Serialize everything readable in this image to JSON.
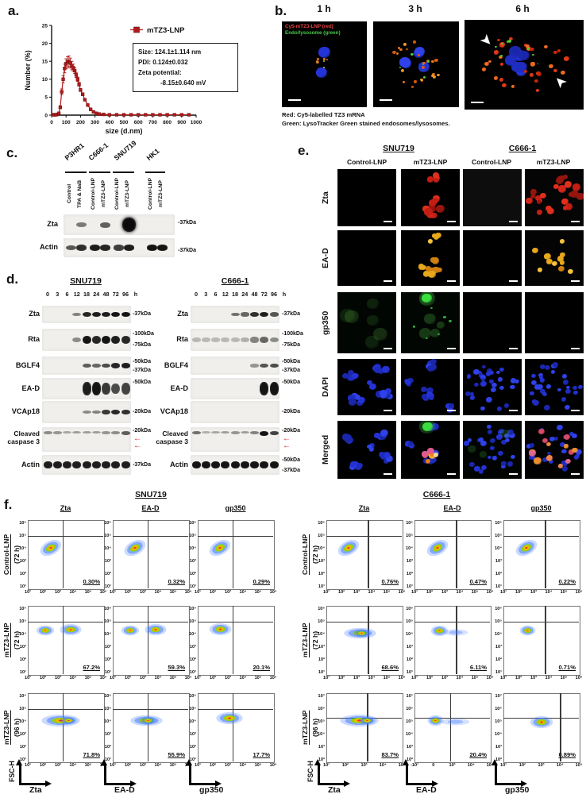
{
  "colors": {
    "series_red": "#b01c1c",
    "arrow_red": "#e02020",
    "overlay_red": "#e84040",
    "overlay_green": "#49c949"
  },
  "panel_a": {
    "label": "a.",
    "legend": "mTZ3-LNP",
    "info_lines": [
      "Size:  124.1±1.114 nm",
      "PDI:   0.124±0.032",
      "Zeta potential:",
      "-8.15±0.640 mV"
    ]
  },
  "chart_data": {
    "type": "line",
    "title": "",
    "xlabel": "size (d.nm)",
    "ylabel": "Number (%)",
    "xlim": [
      0,
      1000
    ],
    "ylim": [
      0,
      25
    ],
    "x_ticks": [
      0,
      100,
      200,
      300,
      400,
      500,
      600,
      700,
      800,
      900,
      1000
    ],
    "y_ticks": [
      0,
      5,
      10,
      15,
      20,
      25
    ],
    "legend": [
      "mTZ3-LNP"
    ],
    "legend_position": "top-right",
    "grid": false,
    "series": [
      {
        "name": "mTZ3-LNP",
        "color": "#b01c1c",
        "x": [
          10,
          20,
          30,
          40,
          50,
          60,
          70,
          80,
          90,
          100,
          110,
          120,
          130,
          140,
          150,
          160,
          170,
          180,
          190,
          200,
          215,
          230,
          250,
          270,
          290,
          310,
          330,
          360,
          400,
          450,
          500,
          550,
          600,
          650,
          700,
          750,
          800,
          850,
          900,
          950
        ],
        "y": [
          0.1,
          0.1,
          0.1,
          0.2,
          0.5,
          2.2,
          6.5,
          10,
          13,
          14.3,
          14.8,
          15,
          14.5,
          13.8,
          13.2,
          12.4,
          11.2,
          10,
          8.6,
          7,
          5.8,
          4.3,
          2.8,
          1.6,
          0.9,
          0.5,
          0.3,
          0.2,
          0.1,
          0.1,
          0.1,
          0.1,
          0.1,
          0.1,
          0.1,
          0.1,
          0.1,
          0.1,
          0.1,
          0.1
        ],
        "err": [
          0,
          0,
          0,
          0,
          0.2,
          0.4,
          0.8,
          1,
          1.2,
          1.4,
          1.5,
          1.5,
          1.4,
          1.2,
          1,
          0.8,
          0.7,
          0.6,
          0.5,
          0.4,
          0.4,
          0.3,
          0.2,
          0.2,
          0,
          0,
          0,
          0,
          0,
          0,
          0,
          0,
          0,
          0,
          0,
          0,
          0,
          0,
          0,
          0
        ]
      }
    ]
  },
  "panel_b": {
    "label": "b.",
    "timepoints": [
      "1 h",
      "3 h",
      "6 h"
    ],
    "overlay_red": "Cy5-mTZ3-LNP (red)",
    "overlay_green": "Endo/lysosome (green)",
    "caption_line1": "Red: Cy5-labelled TZ3 mRNA",
    "caption_line2": "Green: LysoTracker Green stained endosomes/lysosomes."
  },
  "panel_c": {
    "label": "c.",
    "cell_lines": [
      "P3HR1",
      "C666-1",
      "SNU719",
      "HK1"
    ],
    "lane_labels": [
      "Control",
      "TPA & NaB",
      "Control-LNP",
      "mTZ3-LNP",
      "Control-LNP",
      "mTZ3-LNP",
      "Control-LNP",
      "mTZ3-LNP"
    ],
    "rows": [
      {
        "name": "Zta",
        "marker": "-37kDa",
        "bands": [
          0,
          0.35,
          0,
          0.5,
          0,
          1,
          0,
          0
        ]
      },
      {
        "name": "Actin",
        "marker": "-37kDa",
        "bands": [
          0.55,
          0.8,
          0.9,
          0.85,
          0.7,
          0.9,
          0.95,
          0.95
        ]
      }
    ]
  },
  "panel_d": {
    "label": "d.",
    "timepoints": [
      "0",
      "3",
      "6",
      "12",
      "18",
      "24",
      "48",
      "72",
      "96",
      "h"
    ],
    "sets": [
      {
        "title": "SNU719",
        "rows": [
          {
            "name": "Zta",
            "markers": [
              "-37kDa"
            ],
            "bands": [
              0,
              0,
              0,
              0.35,
              0.85,
              0.9,
              0.9,
              0.95,
              0.95
            ]
          },
          {
            "name": "Rta",
            "markers": [
              "-100kDa",
              "-75kDa"
            ],
            "bands": [
              0,
              0,
              0,
              0.3,
              0.95,
              0.85,
              0.95,
              0.9,
              0.85
            ]
          },
          {
            "name": "BGLF4",
            "markers": [
              "-50kDa",
              "-37kDa"
            ],
            "bands": [
              0,
              0,
              0,
              0,
              0.55,
              0.5,
              0.65,
              0.85,
              0.9
            ]
          },
          {
            "name": "EA-D",
            "markers": [
              "-50kDa"
            ],
            "bands": [
              0,
              0,
              0,
              0,
              0.9,
              0.95,
              0.75,
              0.65,
              0.7
            ]
          },
          {
            "name": "VCAp18",
            "markers": [
              "-20kDa"
            ],
            "bands": [
              0,
              0,
              0,
              0,
              0.3,
              0.35,
              0.75,
              0.85,
              0.8
            ]
          },
          {
            "name": "Cleaved caspase 3",
            "markers": [
              "-20kDa"
            ],
            "arrows": true,
            "bands": [
              0.3,
              0.25,
              0.15,
              0.2,
              0.2,
              0.2,
              0.25,
              0.3,
              0.55
            ]
          },
          {
            "name": "Actin",
            "markers": [
              "-37kDa"
            ],
            "bands": [
              0.9,
              0.9,
              0.9,
              0.9,
              0.9,
              0.9,
              0.9,
              0.9,
              0.9
            ]
          }
        ]
      },
      {
        "title": "C666-1",
        "rows": [
          {
            "name": "Zta",
            "markers": [
              "-37kDa"
            ],
            "bands": [
              0,
              0,
              0,
              0,
              0.45,
              0.5,
              0.8,
              0.9,
              0.6
            ]
          },
          {
            "name": "Rta",
            "markers": [
              "-100kDa",
              "-75kDa"
            ],
            "bands": [
              0.05,
              0.05,
              0.05,
              0.05,
              0.05,
              0.1,
              0.35,
              0.5,
              0.3
            ]
          },
          {
            "name": "BGLF4",
            "markers": [
              "-50kDa",
              "-37kDa"
            ],
            "bands": [
              0,
              0,
              0,
              0,
              0,
              0,
              0.25,
              0.6,
              0.65
            ]
          },
          {
            "name": "EA-D",
            "markers": [
              "-50kDa"
            ],
            "bands": [
              0,
              0,
              0,
              0,
              0,
              0,
              0,
              0.95,
              0.95
            ]
          },
          {
            "name": "VCAp18",
            "markers": [
              "-20kDa"
            ],
            "bands": [
              0,
              0,
              0,
              0,
              0,
              0,
              0,
              0,
              0
            ]
          },
          {
            "name": "Cleaved caspase 3",
            "markers": [
              "-20kDa"
            ],
            "arrows": true,
            "bands": [
              0.45,
              0.1,
              0.15,
              0.2,
              0.25,
              0.2,
              0.35,
              0.95,
              0.7
            ]
          },
          {
            "name": "Actin",
            "markers": [
              "-50kDa",
              "-37kDa"
            ],
            "bands": [
              0.95,
              0.95,
              0.95,
              0.95,
              0.95,
              0.95,
              0.95,
              0.95,
              0.95
            ]
          }
        ]
      }
    ]
  },
  "panel_e": {
    "label": "e.",
    "group_headers": [
      "SNU719",
      "C666-1"
    ],
    "col_headers": [
      "Control-LNP",
      "mTZ3-LNP",
      "Control-LNP",
      "mTZ3-LNP"
    ],
    "row_labels": [
      "Zta",
      "EA-D",
      "gp350",
      "DAPI",
      "Merged"
    ],
    "cells": [
      [
        "black",
        "red-cluster",
        "neardark",
        "red-many"
      ],
      [
        "black",
        "yellow-cluster",
        "black",
        "yellow-scatter"
      ],
      [
        "green-faint",
        "green-spots",
        "black",
        "black"
      ],
      [
        "blue-a",
        "blue-b",
        "blue-dense",
        "blue-dense2"
      ],
      [
        "blue-a",
        "merged-b",
        "blue-dense-g",
        "merged-many"
      ]
    ]
  },
  "panel_f": {
    "label": "f.",
    "y_axis_label": "FSC-H",
    "default_x_ticks": [
      "10¹",
      "10²",
      "10³",
      "10⁴",
      "10⁵",
      "10⁶"
    ],
    "default_y_ticks": [
      "10⁶",
      "10⁵",
      "10⁴",
      "10³",
      "10²",
      "10¹"
    ],
    "groups": [
      {
        "title": "SNU719",
        "vline_default": 46,
        "col_headers": [
          "Zta",
          "EA-D",
          "gp350"
        ],
        "axis_labels": [
          "Zta",
          "EA-D",
          "gp350"
        ],
        "rows": [
          {
            "label": "Control-LNP",
            "sub": "(72 h)",
            "plots": [
              {
                "pct": "0.30%",
                "cluster": "control"
              },
              {
                "pct": "0.32%",
                "cluster": "control"
              },
              {
                "pct": "0.29%",
                "cluster": "control"
              }
            ]
          },
          {
            "label": "mTZ3-LNP",
            "sub": "(72 h)",
            "plots": [
              {
                "pct": "67.2%",
                "cluster": "band2"
              },
              {
                "pct": "59.3%",
                "cluster": "band2"
              },
              {
                "pct": "20.1%",
                "cluster": "lobe"
              }
            ]
          },
          {
            "label": "mTZ3-LNP",
            "sub": "(96 h)",
            "plots": [
              {
                "pct": "71.8%",
                "cluster": "bandlong"
              },
              {
                "pct": "55.9%",
                "cluster": "band"
              },
              {
                "pct": "17.7%",
                "cluster": "lobecross"
              }
            ]
          }
        ]
      },
      {
        "title": "C666-1",
        "vline_default": 55,
        "col_headers": [
          "Zta",
          "EA-D",
          "gp350"
        ],
        "axis_labels": [
          "Zta",
          "EA-D",
          "gp350"
        ],
        "rows": [
          {
            "label": "Control-LNP",
            "sub": "(72 h)",
            "plots": [
              {
                "pct": "0.76%",
                "cluster": "control"
              },
              {
                "pct": "0.47%",
                "cluster": "control"
              },
              {
                "pct": "0.22%",
                "cluster": "control"
              }
            ]
          },
          {
            "label": "mTZ3-LNP",
            "sub": "(72 h)",
            "plots": [
              {
                "pct": "68.6%",
                "cluster": "band"
              },
              {
                "pct": "6.11%",
                "cluster": "lobetail"
              },
              {
                "pct": "0.71%",
                "cluster": "lobesmall"
              }
            ]
          },
          {
            "label": "mTZ3-LNP",
            "sub": "(96 h)",
            "plots": [
              {
                "pct": "83.7%",
                "cluster": "bandlong",
                "x_ticks": [
                  "10¹",
                  "10²",
                  "10³",
                  "10⁴",
                  "10⁵"
                ],
                "y_ticks": [
                  "10⁷",
                  "10⁶",
                  "10⁵",
                  "10⁴",
                  "10³",
                  "10²"
                ],
                "vline": 54
              },
              {
                "pct": "20.4%",
                "cluster": "lobetail2",
                "x_ticks": [
                  "-10¹",
                  "0",
                  "10³",
                  "10⁴",
                  "10⁵"
                ],
                "y_ticks": [
                  "10⁷",
                  "10⁶",
                  "10⁵",
                  "10⁴",
                  "10³",
                  "10²"
                ],
                "vline": 47
              },
              {
                "pct": "0.89%",
                "cluster": "lobecross2",
                "x_ticks": [
                  "10¹",
                  "10²",
                  "10³",
                  "10⁴",
                  "10⁵"
                ],
                "y_ticks": [
                  "10⁷",
                  "10⁶",
                  "10⁵",
                  "10⁴",
                  "10³",
                  "10²"
                ],
                "vline": 75
              }
            ]
          }
        ]
      }
    ]
  }
}
